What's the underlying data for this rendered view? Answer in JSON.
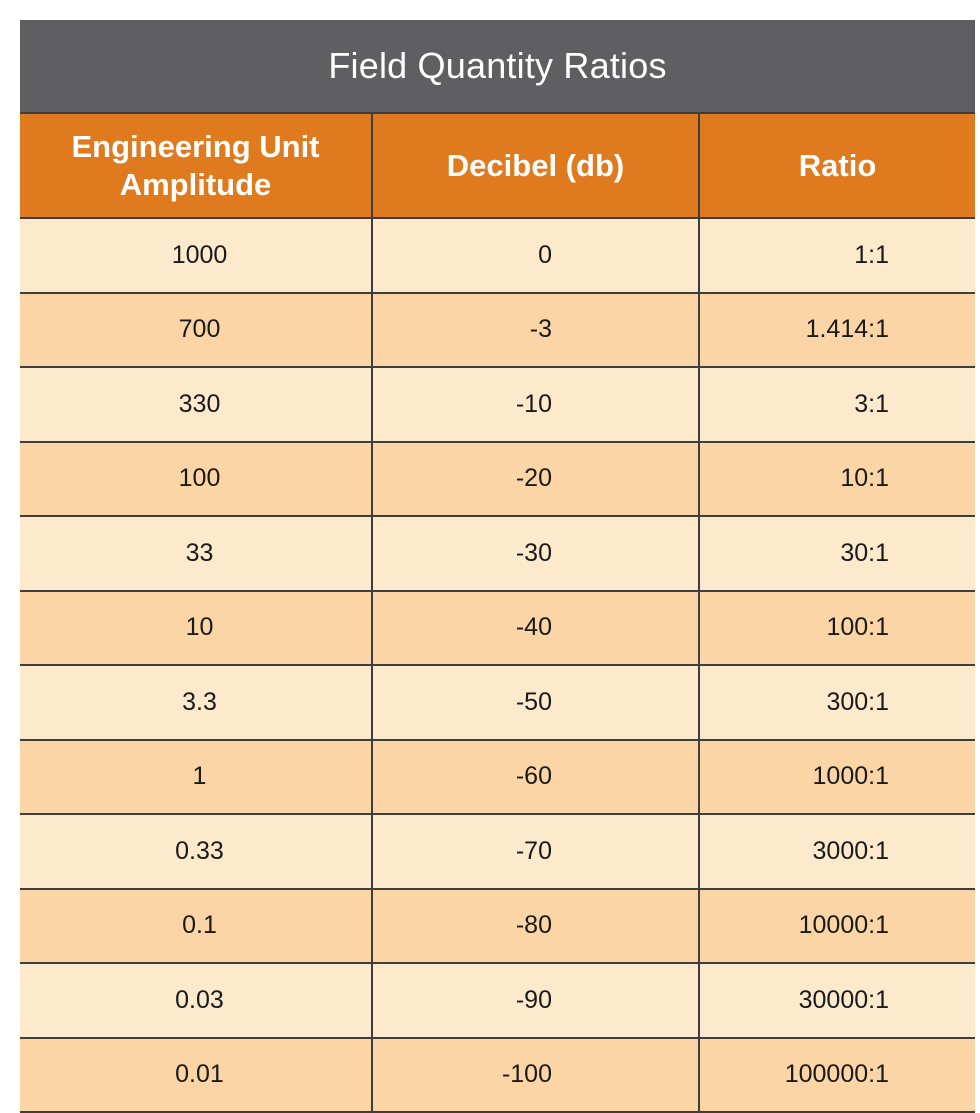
{
  "title": "Field Quantity Ratios",
  "headers": {
    "amplitude": "Engineering Unit Amplitude",
    "decibel": "Decibel (db)",
    "ratio": "Ratio"
  },
  "colors": {
    "title_bg": "#5f5f61",
    "header_bg": "#e07a1f",
    "row_light": "#fde9cc",
    "row_dark": "#fbd5a5"
  },
  "rows": [
    {
      "amplitude": "1000",
      "decibel": "0",
      "ratio": "1:1"
    },
    {
      "amplitude": "700",
      "decibel": "-3",
      "ratio": "1.414:1"
    },
    {
      "amplitude": "330",
      "decibel": "-10",
      "ratio": "3:1"
    },
    {
      "amplitude": "100",
      "decibel": "-20",
      "ratio": "10:1"
    },
    {
      "amplitude": "33",
      "decibel": "-30",
      "ratio": "30:1"
    },
    {
      "amplitude": "10",
      "decibel": "-40",
      "ratio": "100:1"
    },
    {
      "amplitude": "3.3",
      "decibel": "-50",
      "ratio": "300:1"
    },
    {
      "amplitude": "1",
      "decibel": "-60",
      "ratio": "1000:1"
    },
    {
      "amplitude": "0.33",
      "decibel": "-70",
      "ratio": "3000:1"
    },
    {
      "amplitude": "0.1",
      "decibel": "-80",
      "ratio": "10000:1"
    },
    {
      "amplitude": "0.03",
      "decibel": "-90",
      "ratio": "30000:1"
    },
    {
      "amplitude": "0.01",
      "decibel": "-100",
      "ratio": "100000:1"
    }
  ]
}
